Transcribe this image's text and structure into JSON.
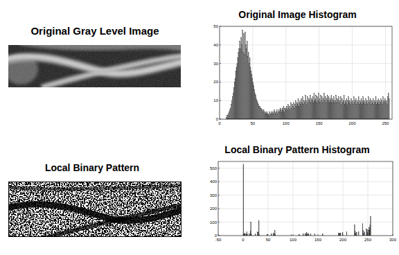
{
  "images": [
    {
      "title": "Original Gray Level Image"
    },
    {
      "title": "Local Binary Pattern"
    }
  ],
  "chart_data": [
    {
      "type": "histogram",
      "title": "Original Image Histogram",
      "color": "#7f7f7f",
      "grid": true,
      "xlim": [
        0,
        260
      ],
      "xticks": [
        0,
        50,
        100,
        150,
        200,
        250
      ],
      "ylim": [
        0,
        50
      ],
      "yticks": [
        0,
        10,
        20,
        30,
        40,
        50
      ],
      "bins": [
        0,
        1,
        2,
        3,
        4,
        5,
        6,
        7,
        8,
        9,
        10,
        11,
        12,
        13,
        14,
        15,
        16,
        17,
        18,
        19,
        20,
        21,
        22,
        23,
        24,
        25,
        26,
        27,
        28,
        29,
        30,
        31,
        32,
        33,
        34,
        35,
        36,
        37,
        38,
        39,
        40,
        41,
        42,
        43,
        44,
        45,
        46,
        47,
        48,
        49,
        50,
        51,
        52,
        53,
        54,
        55,
        56,
        57,
        58,
        59,
        60,
        61,
        62,
        63,
        64,
        65,
        66,
        67,
        68,
        69,
        70,
        71,
        72,
        73,
        74,
        75,
        76,
        77,
        78,
        79,
        80,
        81,
        82,
        83,
        84,
        85,
        86,
        87,
        88,
        89,
        90,
        91,
        92,
        93,
        94,
        95,
        96,
        97,
        98,
        99,
        100,
        101,
        102,
        103,
        104,
        105,
        106,
        107,
        108,
        109,
        110,
        111,
        112,
        113,
        114,
        115,
        116,
        117,
        118,
        119,
        120,
        121,
        122,
        123,
        124,
        125,
        126,
        127,
        128,
        129,
        130,
        131,
        132,
        133,
        134,
        135,
        136,
        137,
        138,
        139,
        140,
        141,
        142,
        143,
        144,
        145,
        146,
        147,
        148,
        149,
        150,
        151,
        152,
        153,
        154,
        155,
        156,
        157,
        158,
        159,
        160,
        161,
        162,
        163,
        164,
        165,
        166,
        167,
        168,
        169,
        170,
        171,
        172,
        173,
        174,
        175,
        176,
        177,
        178,
        179,
        180,
        181,
        182,
        183,
        184,
        185,
        186,
        187,
        188,
        189,
        190,
        191,
        192,
        193,
        194,
        195,
        196,
        197,
        198,
        199,
        200,
        201,
        202,
        203,
        204,
        205,
        206,
        207,
        208,
        209,
        210,
        211,
        212,
        213,
        214,
        215,
        216,
        217,
        218,
        219,
        220,
        221,
        222,
        223,
        224,
        225,
        226,
        227,
        228,
        229,
        230,
        231,
        232,
        233,
        234,
        235,
        236,
        237,
        238,
        239,
        240,
        241,
        242,
        243,
        244,
        245,
        246,
        247,
        248,
        249,
        250,
        251,
        252,
        253,
        254,
        255,
        256
      ],
      "values": [
        0,
        0,
        0,
        0,
        0,
        0,
        0,
        0,
        0,
        0,
        1,
        2,
        2,
        3,
        4,
        5,
        6,
        8,
        10,
        12,
        14,
        17,
        20,
        22,
        26,
        28,
        30,
        33,
        36,
        38,
        42,
        38,
        44,
        40,
        48,
        36,
        46,
        35,
        47,
        40,
        38,
        42,
        34,
        36,
        30,
        33,
        28,
        26,
        24,
        22,
        20,
        18,
        16,
        14,
        13,
        11,
        10,
        9,
        8,
        7,
        7,
        6,
        6,
        5,
        5,
        4,
        5,
        4,
        3,
        4,
        3,
        4,
        3,
        3,
        2,
        4,
        3,
        3,
        4,
        3,
        4,
        3,
        5,
        4,
        3,
        4,
        5,
        3,
        4,
        5,
        4,
        6,
        5,
        4,
        6,
        5,
        7,
        4,
        6,
        5,
        6,
        7,
        5,
        8,
        6,
        7,
        5,
        9,
        6,
        8,
        7,
        9,
        6,
        8,
        10,
        7,
        9,
        8,
        11,
        7,
        9,
        10,
        8,
        11,
        9,
        12,
        8,
        10,
        9,
        13,
        10,
        8,
        12,
        9,
        11,
        10,
        13,
        9,
        11,
        10,
        12,
        9,
        14,
        10,
        11,
        13,
        9,
        12,
        10,
        14,
        11,
        9,
        13,
        10,
        12,
        9,
        11,
        14,
        10,
        12,
        9,
        11,
        13,
        10,
        12,
        9,
        11,
        10,
        13,
        9,
        11,
        10,
        12,
        9,
        10,
        13,
        9,
        11,
        10,
        12,
        9,
        10,
        12,
        8,
        11,
        9,
        10,
        13,
        8,
        10,
        9,
        11,
        8,
        10,
        12,
        9,
        10,
        8,
        11,
        9,
        10,
        8,
        12,
        9,
        10,
        11,
        8,
        10,
        9,
        12,
        8,
        10,
        9,
        11,
        8,
        10,
        12,
        9,
        10,
        8,
        11,
        9,
        10,
        8,
        12,
        9,
        10,
        11,
        8,
        10,
        9,
        11,
        8,
        10,
        9,
        12,
        8,
        10,
        9,
        11,
        8,
        10,
        9,
        11,
        10,
        8,
        12,
        9,
        10,
        11,
        9,
        10,
        8,
        12,
        14,
        11
      ]
    },
    {
      "type": "histogram",
      "title": "Local Binary Pattern Histogram",
      "color": "#333333",
      "grid": true,
      "xlim": [
        -50,
        300
      ],
      "xticks": [
        -50,
        0,
        50,
        100,
        150,
        200,
        250,
        300
      ],
      "ylim": [
        0,
        550
      ],
      "yticks": [
        0,
        100,
        200,
        300,
        400,
        500
      ],
      "bins": [
        0,
        1,
        2,
        3,
        4,
        5,
        6,
        7,
        8,
        9,
        10,
        11,
        12,
        13,
        14,
        15,
        16,
        17,
        18,
        19,
        20,
        21,
        22,
        23,
        24,
        25,
        26,
        27,
        28,
        29,
        30,
        31,
        32,
        33,
        34,
        35,
        36,
        37,
        38,
        39,
        40,
        41,
        42,
        43,
        44,
        45,
        46,
        47,
        48,
        49,
        50,
        51,
        52,
        53,
        54,
        55,
        56,
        57,
        58,
        59,
        60,
        61,
        62,
        63,
        64,
        65,
        66,
        67,
        68,
        69,
        70,
        71,
        72,
        73,
        74,
        75,
        76,
        77,
        78,
        79,
        80,
        81,
        82,
        83,
        84,
        85,
        86,
        87,
        88,
        89,
        90,
        91,
        92,
        93,
        94,
        95,
        96,
        97,
        98,
        99,
        100,
        101,
        102,
        103,
        104,
        105,
        106,
        107,
        108,
        109,
        110,
        111,
        112,
        113,
        114,
        115,
        116,
        117,
        118,
        119,
        120,
        121,
        122,
        123,
        124,
        125,
        126,
        127,
        128,
        129,
        130,
        131,
        132,
        133,
        134,
        135,
        136,
        137,
        138,
        139,
        140,
        141,
        142,
        143,
        144,
        145,
        146,
        147,
        148,
        149,
        150,
        151,
        152,
        153,
        154,
        155,
        156,
        157,
        158,
        159,
        160,
        161,
        162,
        163,
        164,
        165,
        166,
        167,
        168,
        169,
        170,
        171,
        172,
        173,
        174,
        175,
        176,
        177,
        178,
        179,
        180,
        181,
        182,
        183,
        184,
        185,
        186,
        187,
        188,
        189,
        190,
        191,
        192,
        193,
        194,
        195,
        196,
        197,
        198,
        199,
        200,
        201,
        202,
        203,
        204,
        205,
        206,
        207,
        208,
        209,
        210,
        211,
        212,
        213,
        214,
        215,
        216,
        217,
        218,
        219,
        220,
        221,
        222,
        223,
        224,
        225,
        226,
        227,
        228,
        229,
        230,
        231,
        232,
        233,
        234,
        235,
        236,
        237,
        238,
        239,
        240,
        241,
        242,
        243,
        244,
        245,
        246,
        247,
        248,
        249,
        250,
        251,
        252,
        253,
        254,
        255,
        256
      ],
      "values": [
        530,
        15,
        10,
        20,
        8,
        0,
        12,
        30,
        10,
        0,
        0,
        0,
        15,
        0,
        35,
        100,
        10,
        0,
        0,
        0,
        0,
        0,
        0,
        0,
        12,
        0,
        0,
        0,
        30,
        0,
        25,
        110,
        8,
        0,
        0,
        0,
        0,
        0,
        0,
        0,
        0,
        0,
        0,
        0,
        0,
        0,
        0,
        0,
        10,
        0,
        0,
        0,
        0,
        0,
        0,
        0,
        15,
        0,
        0,
        0,
        20,
        0,
        15,
        40,
        8,
        0,
        0,
        0,
        0,
        0,
        0,
        0,
        0,
        0,
        0,
        0,
        0,
        0,
        0,
        0,
        0,
        0,
        0,
        0,
        0,
        0,
        0,
        0,
        0,
        0,
        0,
        0,
        0,
        0,
        0,
        0,
        8,
        0,
        0,
        0,
        0,
        0,
        0,
        0,
        0,
        0,
        0,
        0,
        0,
        0,
        0,
        0,
        10,
        0,
        0,
        0,
        0,
        0,
        0,
        0,
        12,
        0,
        0,
        0,
        15,
        0,
        12,
        25,
        10,
        12,
        0,
        15,
        0,
        0,
        0,
        12,
        0,
        0,
        0,
        0,
        0,
        0,
        0,
        15,
        0,
        0,
        0,
        0,
        0,
        0,
        0,
        0,
        0,
        0,
        0,
        0,
        0,
        0,
        0,
        12,
        0,
        0,
        0,
        0,
        0,
        0,
        0,
        0,
        0,
        0,
        0,
        0,
        0,
        0,
        0,
        0,
        0,
        0,
        0,
        0,
        0,
        0,
        0,
        0,
        0,
        0,
        0,
        0,
        0,
        0,
        0,
        20,
        15,
        20,
        0,
        18,
        0,
        0,
        0,
        25,
        0,
        0,
        0,
        0,
        0,
        0,
        0,
        30,
        0,
        0,
        0,
        0,
        0,
        0,
        0,
        0,
        0,
        0,
        0,
        0,
        0,
        0,
        0,
        80,
        35,
        20,
        0,
        25,
        0,
        0,
        0,
        30,
        0,
        0,
        0,
        0,
        0,
        0,
        0,
        90,
        40,
        20,
        0,
        30,
        0,
        0,
        0,
        50,
        45,
        25,
        0,
        40,
        60,
        45,
        80,
        140
      ]
    }
  ]
}
